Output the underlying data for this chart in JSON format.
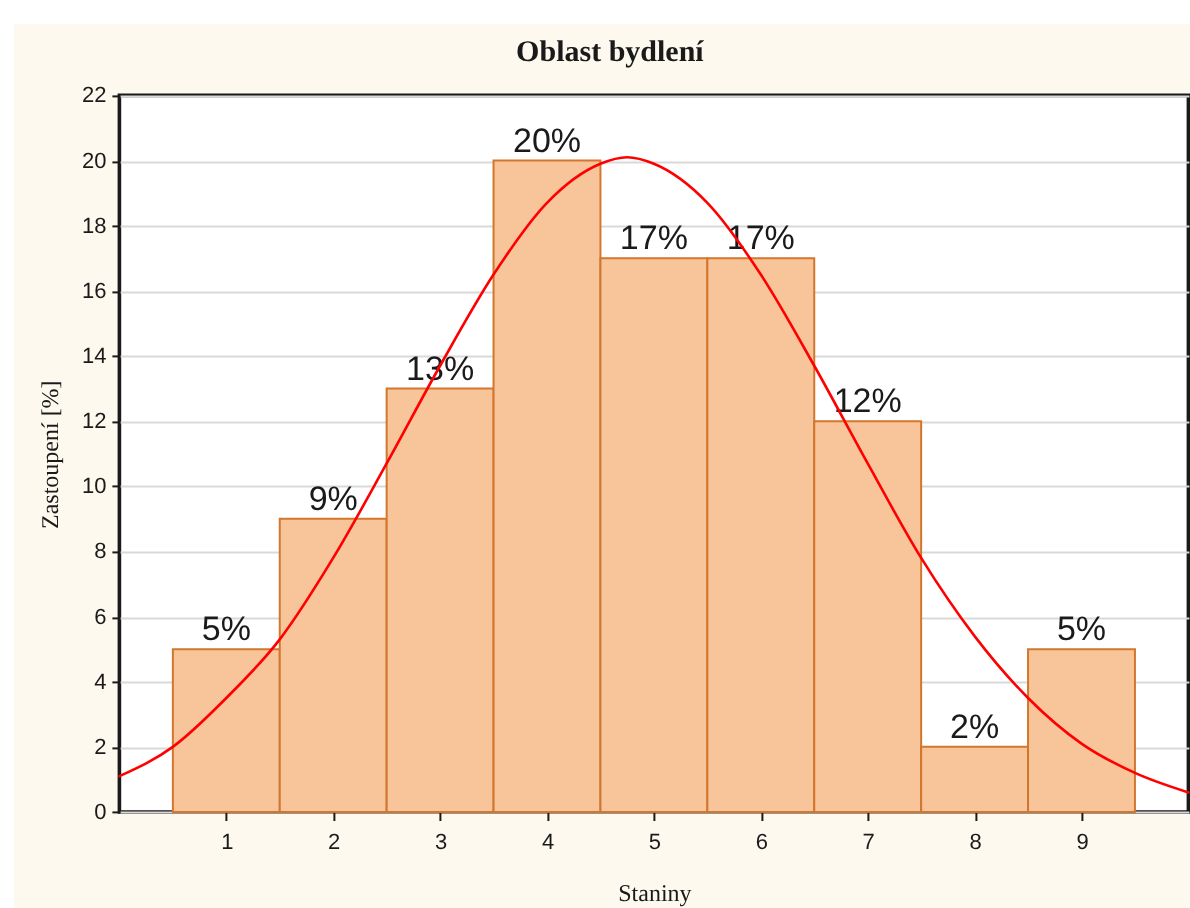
{
  "chart_data": {
    "type": "histogram",
    "title": "Oblast bydlení",
    "xlabel": "Staniny",
    "ylabel": "Zastoupení [%]",
    "bins": [
      0.5,
      1.5,
      2.5,
      3.5,
      4.5,
      5.5,
      6.5,
      7.5,
      8.5,
      9.5
    ],
    "series": [
      {
        "color": "#f8c49a",
        "values": [
          5,
          9,
          13,
          20,
          17,
          17,
          12,
          2,
          5
        ],
        "value_labels": [
          "5%",
          "9%",
          "13%",
          "20%",
          "17%",
          "17%",
          "12%",
          "2%",
          "5%"
        ]
      },
      {
        "type": "line",
        "color": "#ff0000",
        "x": [
          0,
          0.5,
          1,
          1.5,
          2,
          2.5,
          3,
          3.5,
          4,
          4.5,
          4.75,
          5,
          5.5,
          6,
          6.5,
          7,
          7.5,
          8,
          8.5,
          9,
          9.5,
          10
        ],
        "values": [
          1.1,
          2.0,
          3.5,
          5.3,
          7.8,
          10.7,
          13.7,
          16.5,
          18.7,
          19.9,
          20.1,
          19.9,
          18.7,
          16.5,
          13.7,
          10.7,
          7.8,
          5.4,
          3.5,
          2.1,
          1.2,
          0.6
        ]
      }
    ],
    "xlim": [
      0,
      10
    ],
    "xticks": [
      1,
      2,
      3,
      4,
      5,
      6,
      7,
      8,
      9
    ],
    "ylim": [
      0,
      22
    ],
    "yticks": [
      0,
      2,
      4,
      6,
      8,
      10,
      12,
      14,
      16,
      18,
      20,
      22
    ],
    "grid": "y"
  }
}
